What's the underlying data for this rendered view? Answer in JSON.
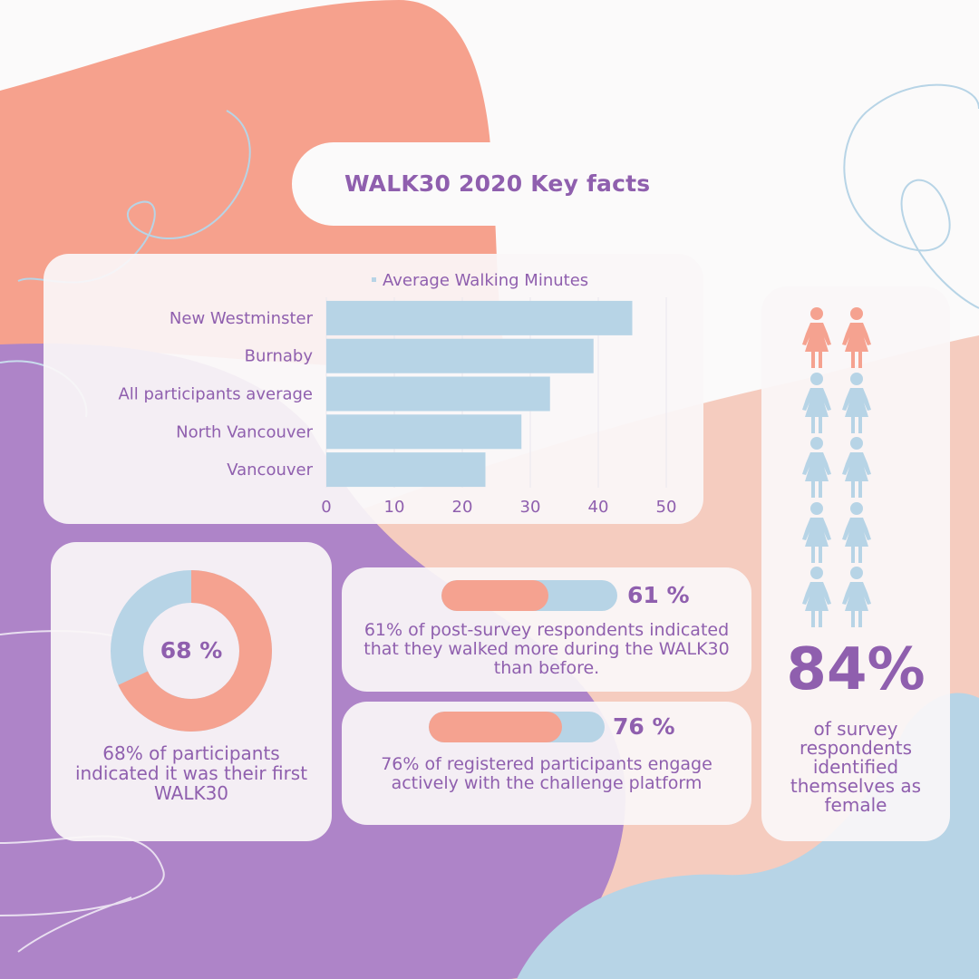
{
  "title": "WALK30 2020 Key facts",
  "colors": {
    "coral": "#f5a290",
    "lightblue": "#b7d4e6",
    "purple": "#8f5fae",
    "lavender": "#ae84c8",
    "peach": "#f5ccbf"
  },
  "chart_data": {
    "type": "bar",
    "orientation": "horizontal",
    "categories": [
      "New Westminster",
      "Burnaby",
      "All participants average",
      "North Vancouver",
      "Vancouver"
    ],
    "series": [
      {
        "name": "Average Walking Minutes",
        "values": [
          45,
          39.3,
          32.9,
          28.7,
          23.4
        ]
      }
    ],
    "xlim": [
      0,
      50
    ],
    "xticks": [
      "0",
      "10",
      "20",
      "30",
      "40",
      "50"
    ],
    "grid": true,
    "legend": "top"
  },
  "donut": {
    "value": 68,
    "label": "68 %",
    "description": "68% of participants indicated it was their first WALK30"
  },
  "progress": [
    {
      "value": 61,
      "label": "61 %",
      "description": "61% of post-survey respondents indicated that they walked more during the WALK30 than before."
    },
    {
      "value": 76,
      "label": "76 %",
      "description": "76% of registered participants engage actively with the challenge platform"
    }
  ],
  "gender": {
    "value": "84%",
    "description": "of survey respondents identified themselves as female",
    "icons": {
      "highlighted": 2,
      "total": 10,
      "highlight_icon": "female-person-icon",
      "icon": "female-person-icon"
    }
  }
}
